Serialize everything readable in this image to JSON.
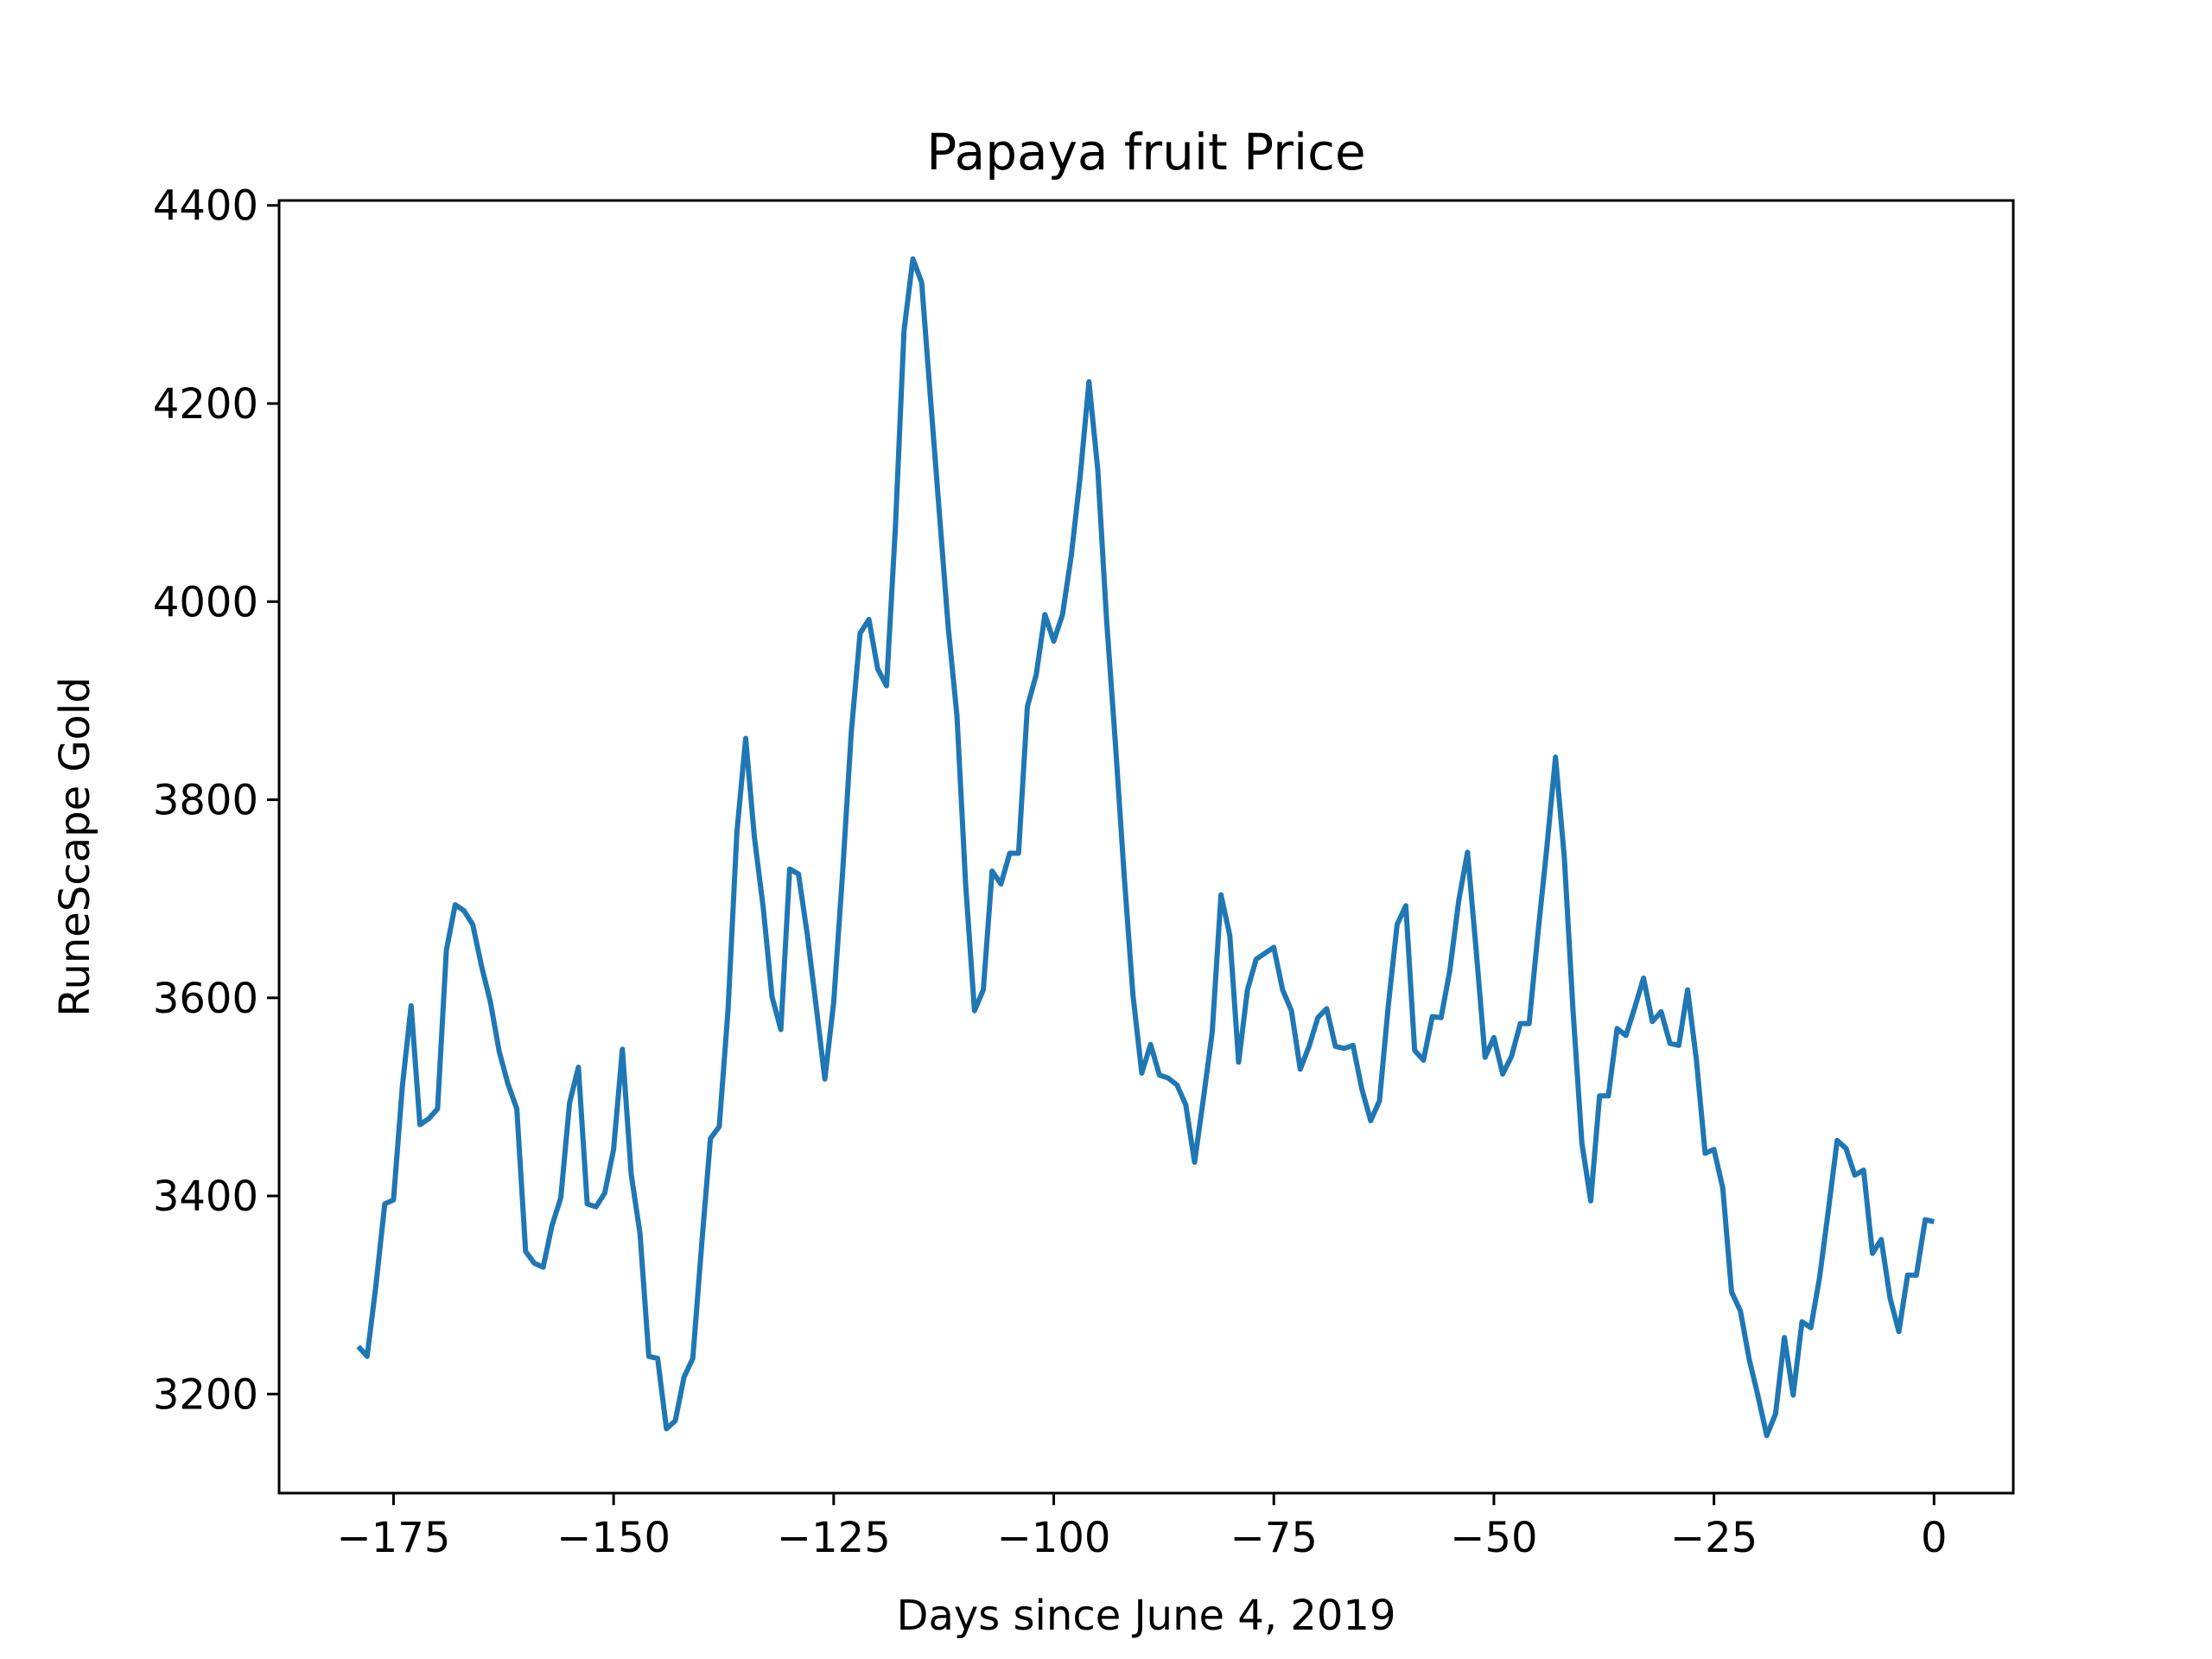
{
  "chart_data": {
    "type": "line",
    "title": "Papaya fruit Price",
    "xlabel": "Days since June 4, 2019",
    "ylabel": "RuneScape Gold",
    "xlim": [
      -188,
      9
    ],
    "ylim": [
      3100,
      4405
    ],
    "x_ticks": [
      -175,
      -150,
      -125,
      -100,
      -75,
      -50,
      -25,
      0
    ],
    "x_tick_labels": [
      "−175",
      "−150",
      "−125",
      "−100",
      "−75",
      "−50",
      "−25",
      "0"
    ],
    "y_ticks": [
      3200,
      3400,
      3600,
      3800,
      4000,
      4200,
      4400
    ],
    "y_tick_labels": [
      "3200",
      "3400",
      "3600",
      "3800",
      "4000",
      "4200",
      "4400"
    ],
    "grid": false,
    "line_color": "#1f77b4",
    "series": [
      {
        "x": [
          -179,
          -178,
          -177,
          -176,
          -175,
          -174,
          -173,
          -172,
          -171,
          -170,
          -169,
          -168,
          -167,
          -166,
          -165,
          -164,
          -163,
          -162,
          -161,
          -160,
          -159,
          -158,
          -157,
          -156,
          -155,
          -154,
          -153,
          -152,
          -151,
          -150,
          -149,
          -148,
          -147,
          -146,
          -145,
          -144,
          -143,
          -142,
          -141,
          -140,
          -139,
          -138,
          -137,
          -136,
          -135,
          -134,
          -133,
          -132,
          -131,
          -130,
          -129,
          -128,
          -127,
          -126,
          -125,
          -124,
          -123,
          -122,
          -121,
          -120,
          -119,
          -118,
          -117,
          -116,
          -115,
          -114,
          -113,
          -112,
          -111,
          -110,
          -109,
          -108,
          -107,
          -106,
          -105,
          -104,
          -103,
          -102,
          -101,
          -100,
          -99,
          -98,
          -97,
          -96,
          -95,
          -94,
          -93,
          -92,
          -91,
          -90,
          -89,
          -88,
          -87,
          -86,
          -85,
          -84,
          -83,
          -82,
          -81,
          -80,
          -79,
          -78,
          -77,
          -76,
          -75,
          -74,
          -73,
          -72,
          -71,
          -70,
          -69,
          -68,
          -67,
          -66,
          -65,
          -64,
          -63,
          -62,
          -61,
          -60,
          -59,
          -58,
          -57,
          -56,
          -55,
          -54,
          -53,
          -52,
          -51,
          -50,
          -49,
          -48,
          -47,
          -46,
          -45,
          -44,
          -43,
          -42,
          -41,
          -40,
          -39,
          -38,
          -37,
          -36,
          -35,
          -34,
          -33,
          -32,
          -31,
          -30,
          -29,
          -28,
          -27,
          -26,
          -25,
          -24,
          -23,
          -22,
          -21,
          -20,
          -19,
          -18,
          -17,
          -16,
          -15,
          -14,
          -13,
          -12,
          -11,
          -10,
          -9,
          -8,
          -7,
          -6,
          -5,
          -4,
          -3,
          -2,
          -1,
          0
        ],
        "values": [
          3248,
          3238,
          3310,
          3392,
          3396,
          3510,
          3592,
          3472,
          3478,
          3488,
          3648,
          3694,
          3688,
          3674,
          3632,
          3596,
          3546,
          3513,
          3488,
          3344,
          3332,
          3328,
          3370,
          3398,
          3494,
          3530,
          3392,
          3389,
          3403,
          3447,
          3548,
          3422,
          3362,
          3238,
          3236,
          3165,
          3173,
          3217,
          3236,
          3350,
          3458,
          3470,
          3588,
          3767,
          3862,
          3762,
          3691,
          3601,
          3568,
          3730,
          3725,
          3664,
          3592,
          3518,
          3595,
          3724,
          3868,
          3968,
          3982,
          3932,
          3915,
          4072,
          4274,
          4346,
          4322,
          4205,
          4090,
          3975,
          3885,
          3714,
          3587,
          3608,
          3728,
          3715,
          3746,
          3746,
          3894,
          3926,
          3987,
          3960,
          3987,
          4047,
          4126,
          4222,
          4133,
          3981,
          3858,
          3724,
          3603,
          3524,
          3553,
          3522,
          3519,
          3512,
          3492,
          3434,
          3498,
          3565,
          3704,
          3663,
          3535,
          3608,
          3639,
          3645,
          3651,
          3608,
          3587,
          3528,
          3551,
          3580,
          3589,
          3551,
          3549,
          3552,
          3508,
          3476,
          3496,
          3592,
          3674,
          3693,
          3547,
          3537,
          3581,
          3580,
          3628,
          3698,
          3747,
          3647,
          3540,
          3560,
          3523,
          3541,
          3574,
          3574,
          3665,
          3750,
          3843,
          3742,
          3586,
          3453,
          3395,
          3501,
          3501,
          3569,
          3562,
          3590,
          3620,
          3576,
          3586,
          3554,
          3552,
          3608,
          3538,
          3443,
          3447,
          3408,
          3303,
          3284,
          3235,
          3198,
          3158,
          3180,
          3257,
          3199,
          3273,
          3267,
          3318,
          3386,
          3456,
          3448,
          3421,
          3426,
          3342,
          3356,
          3297,
          3263,
          3320,
          3320,
          3376,
          3374
        ]
      }
    ]
  }
}
